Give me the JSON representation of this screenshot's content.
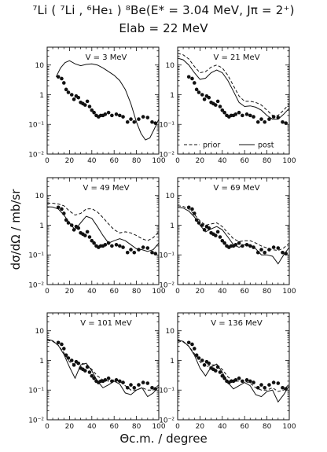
{
  "figure": {
    "title_line1": "⁷Li ( ⁷Li , ⁶He₁ ) ⁸Be(E* = 3.04 MeV, Jπ = 2⁺)",
    "title_line2": "Elab = 22 MeV",
    "ylabel": "dσ/dΩ / mb/sr",
    "xlabel": "Θc.m. / degree"
  },
  "chart_data": [
    {
      "type": "line",
      "panel_label": "V = 3 MeV",
      "xlim": [
        0,
        100
      ],
      "ylim": [
        0.01,
        40
      ],
      "yscale": "log",
      "x_ticks": [
        0,
        20,
        40,
        60,
        80,
        100
      ],
      "y_ticks": [
        0.01,
        0.1,
        1,
        10
      ],
      "y_tick_labels": [
        "10⁻²",
        "10⁻¹",
        "1",
        "10"
      ],
      "legend": null,
      "series": [
        {
          "style": "solid",
          "x": [
            8,
            12,
            16,
            20,
            25,
            30,
            35,
            40,
            45,
            50,
            55,
            60,
            65,
            70,
            75,
            80,
            84,
            88,
            92,
            96,
            100
          ],
          "y": [
            4,
            8,
            12,
            14,
            11,
            9.5,
            10.5,
            11,
            10,
            8,
            6,
            4.5,
            3,
            1.5,
            0.5,
            0.12,
            0.05,
            0.03,
            0.035,
            0.07,
            0.15
          ]
        },
        {
          "style": "points",
          "x": [
            10,
            13,
            15,
            17,
            19,
            22,
            24,
            26,
            28,
            30,
            32,
            34,
            36,
            38,
            40,
            42,
            44,
            46,
            48,
            50,
            52,
            55,
            58,
            62,
            65,
            68,
            72,
            75,
            78,
            82,
            86,
            90,
            94,
            97
          ],
          "y": [
            4,
            3.5,
            2.5,
            1.5,
            1.2,
            1.0,
            0.7,
            0.9,
            0.8,
            0.55,
            0.5,
            0.45,
            0.6,
            0.4,
            0.3,
            0.25,
            0.2,
            0.18,
            0.2,
            0.2,
            0.22,
            0.25,
            0.2,
            0.22,
            0.2,
            0.18,
            0.12,
            0.15,
            0.12,
            0.15,
            0.18,
            0.17,
            0.12,
            0.11
          ]
        }
      ]
    },
    {
      "type": "line",
      "panel_label": "V = 21 MeV",
      "xlim": [
        0,
        100
      ],
      "ylim": [
        0.01,
        40
      ],
      "yscale": "log",
      "x_ticks": [
        0,
        20,
        40,
        60,
        80,
        100
      ],
      "y_ticks": [
        0.01,
        0.1,
        1,
        10
      ],
      "y_tick_labels": [
        "10⁻²",
        "10⁻¹",
        "1",
        "10"
      ],
      "legend": {
        "entries": [
          {
            "style": "dashed",
            "label": "prior"
          },
          {
            "style": "solid",
            "label": "post"
          }
        ],
        "position": "bottom"
      },
      "series": [
        {
          "name": "prior",
          "style": "dashed",
          "x": [
            0,
            5,
            10,
            15,
            20,
            25,
            30,
            35,
            40,
            45,
            50,
            55,
            60,
            65,
            70,
            75,
            80,
            85,
            90,
            95,
            100
          ],
          "y": [
            25,
            22,
            16,
            9,
            5.5,
            6,
            8.5,
            10,
            8,
            4.5,
            2,
            0.9,
            0.6,
            0.6,
            0.55,
            0.45,
            0.3,
            0.2,
            0.2,
            0.3,
            0.5
          ]
        },
        {
          "name": "post",
          "style": "solid",
          "x": [
            0,
            5,
            10,
            15,
            20,
            25,
            30,
            35,
            40,
            45,
            50,
            55,
            60,
            65,
            70,
            75,
            80,
            85,
            90,
            95,
            100
          ],
          "y": [
            17,
            15,
            10,
            5.5,
            3.3,
            3.6,
            5.5,
            6.8,
            5.5,
            3,
            1.3,
            0.55,
            0.4,
            0.42,
            0.38,
            0.3,
            0.2,
            0.15,
            0.15,
            0.22,
            0.35
          ]
        },
        {
          "style": "points",
          "x": [
            10,
            13,
            15,
            17,
            19,
            22,
            24,
            26,
            28,
            30,
            32,
            34,
            36,
            38,
            40,
            42,
            44,
            46,
            48,
            50,
            52,
            55,
            58,
            62,
            65,
            68,
            72,
            75,
            78,
            82,
            86,
            90,
            94,
            97
          ],
          "y": [
            4,
            3.5,
            2.5,
            1.5,
            1.2,
            1.0,
            0.7,
            0.9,
            0.8,
            0.55,
            0.5,
            0.45,
            0.6,
            0.4,
            0.3,
            0.25,
            0.2,
            0.18,
            0.2,
            0.2,
            0.22,
            0.25,
            0.2,
            0.22,
            0.2,
            0.18,
            0.12,
            0.15,
            0.12,
            0.15,
            0.18,
            0.17,
            0.12,
            0.11
          ]
        }
      ]
    },
    {
      "type": "line",
      "panel_label": "V = 49 MeV",
      "xlim": [
        0,
        100
      ],
      "ylim": [
        0.01,
        40
      ],
      "yscale": "log",
      "x_ticks": [
        0,
        20,
        40,
        60,
        80,
        100
      ],
      "y_ticks": [
        0.01,
        0.1,
        1,
        10
      ],
      "y_tick_labels": [
        "10⁻²",
        "10⁻¹",
        "1",
        "10"
      ],
      "legend": null,
      "series": [
        {
          "style": "dashed",
          "x": [
            0,
            5,
            10,
            15,
            20,
            25,
            30,
            35,
            40,
            45,
            50,
            55,
            60,
            65,
            70,
            75,
            80,
            85,
            90,
            95,
            100
          ],
          "y": [
            5.5,
            5.5,
            5.2,
            4.5,
            3,
            2.2,
            2.5,
            3.5,
            3.6,
            2.8,
            1.8,
            1.1,
            0.7,
            0.55,
            0.6,
            0.55,
            0.45,
            0.35,
            0.3,
            0.38,
            0.6
          ]
        },
        {
          "style": "solid",
          "x": [
            0,
            5,
            10,
            15,
            20,
            25,
            30,
            35,
            40,
            45,
            50,
            55,
            60,
            65,
            70,
            75,
            80,
            85,
            90,
            95,
            100
          ],
          "y": [
            4.2,
            4.1,
            3.5,
            2.2,
            1.2,
            0.7,
            1.2,
            2,
            1.7,
            0.9,
            0.45,
            0.25,
            0.3,
            0.35,
            0.3,
            0.22,
            0.16,
            0.15,
            0.13,
            0.15,
            0.25
          ]
        },
        {
          "style": "points",
          "x": [
            10,
            13,
            15,
            17,
            19,
            22,
            24,
            26,
            28,
            30,
            32,
            34,
            36,
            38,
            40,
            42,
            44,
            46,
            48,
            50,
            52,
            55,
            58,
            62,
            65,
            68,
            72,
            75,
            78,
            82,
            86,
            90,
            94,
            97
          ],
          "y": [
            4,
            3.5,
            2.5,
            1.5,
            1.2,
            1.0,
            0.7,
            0.9,
            0.8,
            0.55,
            0.5,
            0.45,
            0.6,
            0.4,
            0.3,
            0.25,
            0.2,
            0.18,
            0.2,
            0.2,
            0.22,
            0.25,
            0.2,
            0.22,
            0.2,
            0.18,
            0.12,
            0.15,
            0.12,
            0.15,
            0.18,
            0.17,
            0.12,
            0.11
          ]
        }
      ]
    },
    {
      "type": "line",
      "panel_label": "V = 69 MeV",
      "xlim": [
        0,
        100
      ],
      "ylim": [
        0.01,
        40
      ],
      "yscale": "log",
      "x_ticks": [
        0,
        20,
        40,
        60,
        80,
        100
      ],
      "y_ticks": [
        0.01,
        0.1,
        1,
        10
      ],
      "y_tick_labels": [
        "10⁻²",
        "10⁻¹",
        "1",
        "10"
      ],
      "legend": null,
      "series": [
        {
          "style": "dashed",
          "x": [
            0,
            5,
            10,
            15,
            20,
            25,
            30,
            35,
            40,
            45,
            50,
            55,
            60,
            65,
            70,
            75,
            80,
            85,
            90,
            95,
            100
          ],
          "y": [
            4.5,
            4.3,
            3.5,
            2.3,
            1.4,
            1.0,
            1.1,
            1.2,
            0.9,
            0.55,
            0.35,
            0.28,
            0.3,
            0.3,
            0.25,
            0.2,
            0.17,
            0.15,
            0.14,
            0.17,
            0.25
          ]
        },
        {
          "style": "solid",
          "x": [
            0,
            5,
            10,
            15,
            20,
            25,
            30,
            35,
            40,
            45,
            50,
            55,
            60,
            65,
            70,
            75,
            80,
            85,
            90,
            95,
            100
          ],
          "y": [
            4,
            3.8,
            3,
            1.9,
            1.0,
            0.6,
            0.75,
            0.9,
            0.7,
            0.4,
            0.22,
            0.18,
            0.22,
            0.22,
            0.16,
            0.1,
            0.1,
            0.09,
            0.05,
            0.1,
            0.18
          ]
        },
        {
          "style": "points",
          "x": [
            10,
            13,
            15,
            17,
            19,
            22,
            24,
            26,
            28,
            30,
            32,
            34,
            36,
            38,
            40,
            42,
            44,
            46,
            48,
            50,
            52,
            55,
            58,
            62,
            65,
            68,
            72,
            75,
            78,
            82,
            86,
            90,
            94,
            97
          ],
          "y": [
            4,
            3.5,
            2.5,
            1.5,
            1.2,
            1.0,
            0.7,
            0.9,
            0.8,
            0.55,
            0.5,
            0.45,
            0.6,
            0.4,
            0.3,
            0.25,
            0.2,
            0.18,
            0.2,
            0.2,
            0.22,
            0.25,
            0.2,
            0.22,
            0.2,
            0.18,
            0.12,
            0.15,
            0.12,
            0.15,
            0.18,
            0.17,
            0.12,
            0.11
          ]
        }
      ]
    },
    {
      "type": "line",
      "panel_label": "V = 101 MeV",
      "xlim": [
        0,
        100
      ],
      "ylim": [
        0.01,
        40
      ],
      "yscale": "log",
      "x_ticks": [
        0,
        20,
        40,
        60,
        80,
        100
      ],
      "y_ticks": [
        0.01,
        0.1,
        1,
        10
      ],
      "y_tick_labels": [
        "10⁻²",
        "10⁻¹",
        "1",
        "10"
      ],
      "legend": null,
      "series": [
        {
          "style": "dashed",
          "x": [
            0,
            5,
            10,
            15,
            20,
            25,
            30,
            35,
            40,
            45,
            50,
            55,
            60,
            65,
            70,
            75,
            80,
            85,
            90,
            95,
            100
          ],
          "y": [
            4.8,
            4.4,
            3.2,
            1.8,
            0.9,
            0.7,
            0.8,
            0.75,
            0.5,
            0.3,
            0.22,
            0.2,
            0.22,
            0.2,
            0.14,
            0.1,
            0.1,
            0.12,
            0.1,
            0.1,
            0.15
          ]
        },
        {
          "style": "solid",
          "x": [
            0,
            5,
            10,
            15,
            20,
            25,
            30,
            35,
            40,
            45,
            50,
            55,
            60,
            65,
            70,
            75,
            80,
            85,
            90,
            95,
            100
          ],
          "y": [
            5.2,
            4.6,
            3.2,
            1.6,
            0.6,
            0.25,
            0.7,
            0.8,
            0.45,
            0.2,
            0.12,
            0.15,
            0.2,
            0.16,
            0.08,
            0.07,
            0.1,
            0.12,
            0.06,
            0.08,
            0.13
          ]
        },
        {
          "style": "points",
          "x": [
            10,
            13,
            15,
            17,
            19,
            22,
            24,
            26,
            28,
            30,
            32,
            34,
            36,
            38,
            40,
            42,
            44,
            46,
            48,
            50,
            52,
            55,
            58,
            62,
            65,
            68,
            72,
            75,
            78,
            82,
            86,
            90,
            94,
            97
          ],
          "y": [
            4,
            3.5,
            2.5,
            1.5,
            1.2,
            1.0,
            0.7,
            0.9,
            0.8,
            0.55,
            0.5,
            0.45,
            0.6,
            0.4,
            0.3,
            0.25,
            0.2,
            0.18,
            0.2,
            0.2,
            0.22,
            0.25,
            0.2,
            0.22,
            0.2,
            0.18,
            0.12,
            0.15,
            0.12,
            0.15,
            0.18,
            0.17,
            0.12,
            0.11
          ]
        }
      ]
    },
    {
      "type": "line",
      "panel_label": "V = 136 MeV",
      "xlim": [
        0,
        100
      ],
      "ylim": [
        0.01,
        40
      ],
      "yscale": "log",
      "x_ticks": [
        0,
        20,
        40,
        60,
        80,
        100
      ],
      "y_ticks": [
        0.01,
        0.1,
        1,
        10
      ],
      "y_tick_labels": [
        "10⁻²",
        "10⁻¹",
        "1",
        "10"
      ],
      "legend": null,
      "series": [
        {
          "style": "dashed",
          "x": [
            0,
            5,
            10,
            15,
            20,
            25,
            30,
            35,
            40,
            45,
            50,
            55,
            60,
            65,
            70,
            75,
            80,
            85,
            90,
            95,
            100
          ],
          "y": [
            4.5,
            4.2,
            3,
            1.7,
            0.9,
            0.6,
            0.7,
            0.7,
            0.5,
            0.28,
            0.2,
            0.2,
            0.2,
            0.17,
            0.12,
            0.1,
            0.1,
            0.12,
            0.09,
            0.1,
            0.16
          ]
        },
        {
          "style": "solid",
          "x": [
            0,
            5,
            10,
            15,
            20,
            25,
            30,
            35,
            40,
            45,
            50,
            55,
            60,
            65,
            70,
            75,
            80,
            85,
            90,
            95,
            100
          ],
          "y": [
            4.8,
            4.4,
            3,
            1.5,
            0.55,
            0.3,
            0.6,
            0.75,
            0.4,
            0.18,
            0.11,
            0.14,
            0.18,
            0.14,
            0.07,
            0.06,
            0.09,
            0.1,
            0.04,
            0.07,
            0.14
          ]
        },
        {
          "style": "points",
          "x": [
            10,
            13,
            15,
            17,
            19,
            22,
            24,
            26,
            28,
            30,
            32,
            34,
            36,
            38,
            40,
            42,
            44,
            46,
            48,
            50,
            52,
            55,
            58,
            62,
            65,
            68,
            72,
            75,
            78,
            82,
            86,
            90,
            94,
            97
          ],
          "y": [
            4,
            3.5,
            2.5,
            1.5,
            1.2,
            1.0,
            0.7,
            0.9,
            0.8,
            0.55,
            0.5,
            0.45,
            0.6,
            0.4,
            0.3,
            0.25,
            0.2,
            0.18,
            0.2,
            0.2,
            0.22,
            0.25,
            0.2,
            0.22,
            0.2,
            0.18,
            0.12,
            0.15,
            0.12,
            0.15,
            0.18,
            0.17,
            0.12,
            0.11
          ]
        }
      ]
    }
  ]
}
